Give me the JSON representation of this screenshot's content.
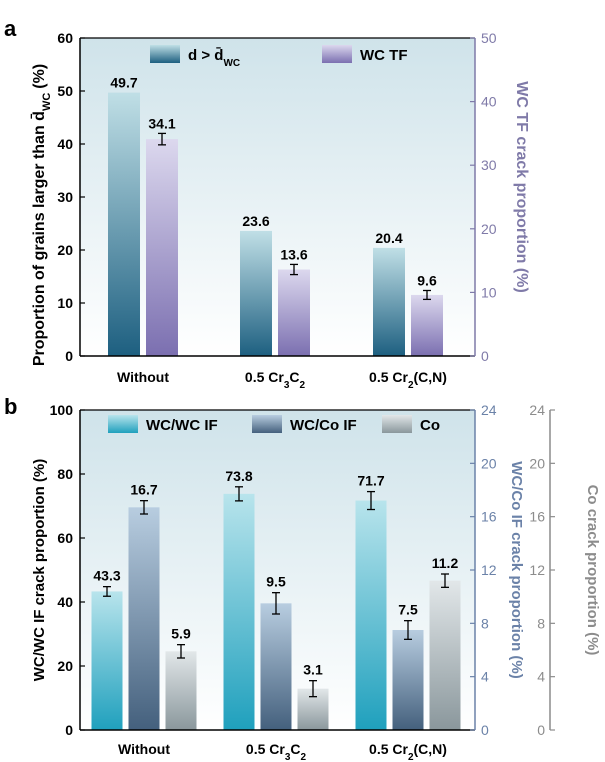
{
  "chart_data": [
    {
      "panel": "a",
      "type": "bar",
      "categories": [
        "Without",
        "0.5 Cr3C2",
        "0.5 Cr2(C,N)"
      ],
      "series": [
        {
          "name": "d > d̄WC",
          "axis": "left",
          "values": [
            49.7,
            23.6,
            20.4
          ],
          "errors": [
            0,
            0,
            0
          ],
          "color_top": "#c0dfe6",
          "color_bottom": "#1d5f80"
        },
        {
          "name": "WC TF",
          "axis": "right",
          "values": [
            34.1,
            13.6,
            9.6
          ],
          "errors": [
            0.9,
            0.8,
            0.7
          ],
          "color_top": "#dcd8ee",
          "color_bottom": "#7b6fb0"
        }
      ],
      "ylabel": "Proportion of grains larger than d̄WC (%)",
      "ylabel_right": "WC TF crack proportion (%)",
      "ylim": [
        0,
        60
      ],
      "ylim_right": [
        0,
        50
      ],
      "yticks": [
        0,
        10,
        20,
        30,
        40,
        50,
        60
      ],
      "yticks_right": [
        0,
        10,
        20,
        30,
        40,
        50
      ],
      "bg_top": "#cfe3ea",
      "bg_bottom": "#ffffff",
      "right_axis_color": "#7f7aa8"
    },
    {
      "panel": "b",
      "type": "bar",
      "categories": [
        "Without",
        "0.5 Cr3C2",
        "0.5 Cr2(C,N)"
      ],
      "series": [
        {
          "name": "WC/WC IF",
          "axis": "left",
          "values": [
            43.3,
            73.8,
            71.7
          ],
          "errors": [
            1.5,
            2.2,
            2.8
          ],
          "color_top": "#b8e4ec",
          "color_bottom": "#1fa0bd"
        },
        {
          "name": "WC/Co IF",
          "axis": "right",
          "values": [
            16.7,
            9.5,
            7.5
          ],
          "errors": [
            0.5,
            0.8,
            0.7
          ],
          "color_top": "#b8cde0",
          "color_bottom": "#44607d"
        },
        {
          "name": "Co",
          "axis": "right2",
          "values": [
            5.9,
            3.1,
            11.2
          ],
          "errors": [
            0.5,
            0.6,
            0.5
          ],
          "color_top": "#e2e7e9",
          "color_bottom": "#8a979c"
        }
      ],
      "ylabel": "WC/WC IF crack proportion (%)",
      "ylabel_right": "WC/Co IF crack proportion (%)",
      "ylabel_right2": "Co crack proportion  (%)",
      "ylim": [
        0,
        100
      ],
      "ylim_right": [
        0,
        24
      ],
      "ylim_right2": [
        0,
        24
      ],
      "yticks": [
        0,
        20,
        40,
        60,
        80,
        100
      ],
      "yticks_right": [
        0,
        4,
        8,
        12,
        16,
        20,
        24
      ],
      "yticks_right2": [
        0,
        4,
        8,
        12,
        16,
        20,
        24
      ],
      "bg_top": "#cfe3ea",
      "bg_bottom": "#ffffff",
      "right_axis_color": "#6b82a8",
      "right2_axis_color": "#8c8c8c"
    }
  ]
}
